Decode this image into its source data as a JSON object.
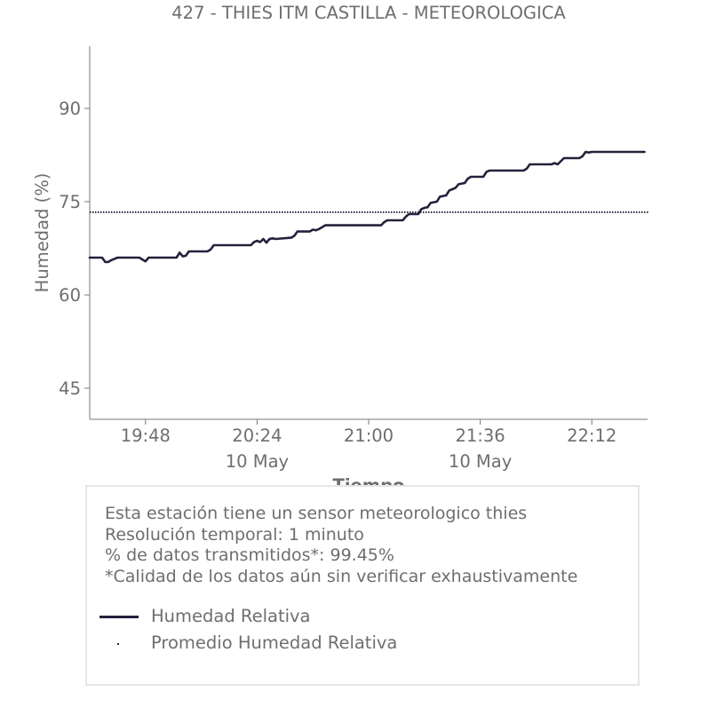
{
  "chart_data": {
    "type": "line",
    "title": "427 - THIES ITM CASTILLA - METEOROLOGICA",
    "xlabel": "Tiempo",
    "ylabel": "Humedad (%)",
    "x_range": [
      "19:30",
      "22:30"
    ],
    "ylim": [
      40,
      100
    ],
    "y_ticks": [
      45,
      60,
      75,
      90
    ],
    "x_ticks": [
      {
        "t": "19:48",
        "label": "19:48",
        "sublabel": ""
      },
      {
        "t": "20:24",
        "label": "20:24",
        "sublabel": "10 May"
      },
      {
        "t": "21:00",
        "label": "21:00",
        "sublabel": ""
      },
      {
        "t": "21:36",
        "label": "21:36",
        "sublabel": "10 May"
      },
      {
        "t": "22:12",
        "label": "22:12",
        "sublabel": ""
      }
    ],
    "series": [
      {
        "name": "Humedad Relativa",
        "color": "#22223d",
        "style": "solid",
        "points": [
          [
            "19:30",
            66
          ],
          [
            "19:34",
            66
          ],
          [
            "19:35",
            65.3
          ],
          [
            "19:36",
            65.3
          ],
          [
            "19:37",
            65.6
          ],
          [
            "19:39",
            66
          ],
          [
            "19:46",
            66
          ],
          [
            "19:47",
            65.7
          ],
          [
            "19:48",
            65.4
          ],
          [
            "19:49",
            66
          ],
          [
            "19:58",
            66
          ],
          [
            "19:59",
            66.8
          ],
          [
            "20:00",
            66.2
          ],
          [
            "20:01",
            66.3
          ],
          [
            "20:02",
            67
          ],
          [
            "20:08",
            67
          ],
          [
            "20:09",
            67.3
          ],
          [
            "20:10",
            68
          ],
          [
            "20:22",
            68
          ],
          [
            "20:23",
            68.5
          ],
          [
            "20:24",
            68.7
          ],
          [
            "20:25",
            68.5
          ],
          [
            "20:26",
            69
          ],
          [
            "20:27",
            68.4
          ],
          [
            "20:28",
            69
          ],
          [
            "20:29",
            69.1
          ],
          [
            "20:30",
            69
          ],
          [
            "20:35",
            69.2
          ],
          [
            "20:36",
            69.5
          ],
          [
            "20:37",
            70.2
          ],
          [
            "20:41",
            70.2
          ],
          [
            "20:42",
            70.5
          ],
          [
            "20:43",
            70.4
          ],
          [
            "20:44",
            70.6
          ],
          [
            "20:46",
            71.2
          ],
          [
            "21:04",
            71.2
          ],
          [
            "21:05",
            71.7
          ],
          [
            "21:06",
            72
          ],
          [
            "21:11",
            72
          ],
          [
            "21:12",
            72.6
          ],
          [
            "21:13",
            73
          ],
          [
            "21:16",
            73
          ],
          [
            "21:17",
            73.8
          ],
          [
            "21:18",
            74
          ],
          [
            "21:19",
            74.1
          ],
          [
            "21:20",
            74.8
          ],
          [
            "21:22",
            75
          ],
          [
            "21:23",
            75.8
          ],
          [
            "21:25",
            76
          ],
          [
            "21:26",
            76.8
          ],
          [
            "21:27",
            77
          ],
          [
            "21:28",
            77.2
          ],
          [
            "21:29",
            77.8
          ],
          [
            "21:31",
            78
          ],
          [
            "21:32",
            78.7
          ],
          [
            "21:33",
            79
          ],
          [
            "21:37",
            79
          ],
          [
            "21:38",
            79.8
          ],
          [
            "21:39",
            80
          ],
          [
            "21:50",
            80
          ],
          [
            "21:51",
            80.3
          ],
          [
            "21:52",
            81
          ],
          [
            "21:59",
            81
          ],
          [
            "22:00",
            81.2
          ],
          [
            "22:01",
            81
          ],
          [
            "22:03",
            82
          ],
          [
            "22:08",
            82
          ],
          [
            "22:09",
            82.3
          ],
          [
            "22:10",
            83
          ],
          [
            "22:11",
            82.9
          ],
          [
            "22:12",
            83
          ],
          [
            "22:29",
            83
          ]
        ]
      },
      {
        "name": "Promedio Humedad Relativa",
        "color": "#22223d",
        "style": "dotted",
        "value": 73.3
      }
    ]
  },
  "info": {
    "lines": [
      "Esta estación tiene un sensor meteorologico thies",
      "Resolución temporal: 1 minuto",
      "% de datos transmitidos*: 99.45%",
      "*Calidad de los datos aún sin verificar exhaustivamente"
    ]
  },
  "legend": [
    {
      "label": "Humedad Relativa",
      "marker": "line"
    },
    {
      "label": "Promedio Humedad Relativa",
      "marker": "dot"
    }
  ]
}
